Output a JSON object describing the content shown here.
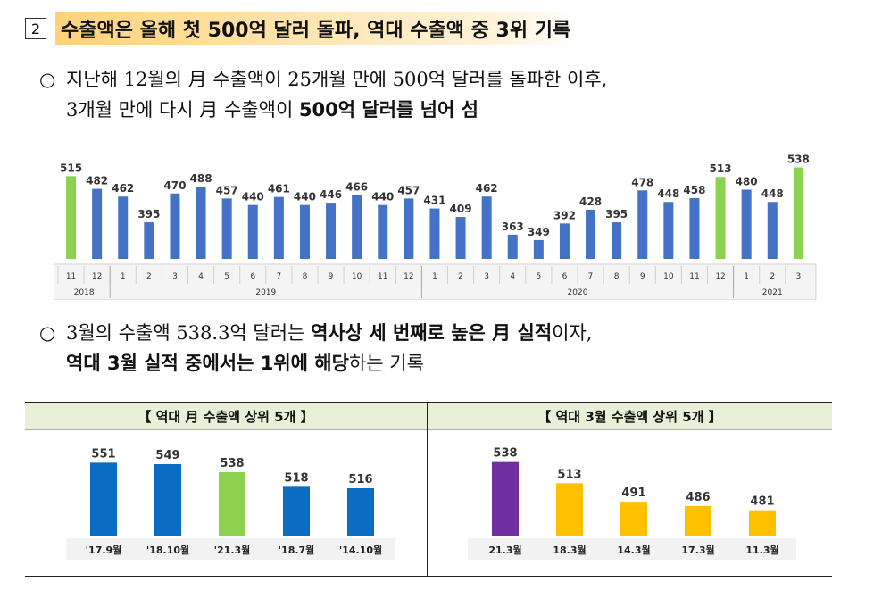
{
  "heading": {
    "number": "2",
    "title": "수출액은 올해 첫 500억 달러 돌파, 역대 수출액 중 3위 기록"
  },
  "para1": {
    "bullet": "○",
    "line1": "지난해 12월의 月 수출액이 25개월 만에 500억 달러를 돌파한 이후,",
    "line2_plain": "3개월 만에 다시 月 수출액이 ",
    "line2_bold": "500억 달러를 넘어 섬"
  },
  "para2": {
    "bullet": "○",
    "line1_plain_a": "3월의 수출액 538.3억 달러는 ",
    "line1_bold": "역사상 세 번째로 높은 月 실적",
    "line1_plain_b": "이자,",
    "line2_bold": "역대 3월 실적 중에서는 1위에 해당",
    "line2_plain": "하는 기록"
  },
  "colors": {
    "blue": "#4472c4",
    "green": "#8dd14f",
    "dark_blue": "#0a6cc2",
    "purple": "#7030a0",
    "yellow": "#ffc000"
  },
  "chart_data": [
    {
      "type": "bar",
      "months": [
        "11",
        "12",
        "1",
        "2",
        "3",
        "4",
        "5",
        "6",
        "7",
        "8",
        "9",
        "10",
        "11",
        "12",
        "1",
        "2",
        "3",
        "4",
        "5",
        "6",
        "7",
        "8",
        "9",
        "10",
        "11",
        "12",
        "1",
        "2",
        "3"
      ],
      "years": [
        {
          "label": "2018",
          "span": 2
        },
        {
          "label": "2019",
          "span": 12
        },
        {
          "label": "2020",
          "span": 12
        },
        {
          "label": "2021",
          "span": 3
        }
      ],
      "values": [
        515,
        482,
        462,
        395,
        470,
        488,
        457,
        440,
        461,
        440,
        446,
        466,
        440,
        457,
        431,
        409,
        462,
        363,
        349,
        392,
        428,
        395,
        478,
        448,
        458,
        513,
        480,
        448,
        538
      ],
      "highlight_indexes": [
        0,
        25,
        28
      ],
      "ylim": [
        300,
        560
      ]
    },
    {
      "type": "bar",
      "title": "【 역대 月 수출액 상위 5개 】",
      "categories": [
        "'17.9월",
        "'18.10월",
        "'21.3월",
        "'18.7월",
        "'14.10월"
      ],
      "values": [
        551,
        549,
        538,
        518,
        516
      ],
      "highlight_index": 2,
      "ylim": [
        450,
        560
      ]
    },
    {
      "type": "bar",
      "title": "【 역대 3월 수출액 상위 5개 】",
      "categories": [
        "21.3월",
        "18.3월",
        "14.3월",
        "17.3월",
        "11.3월"
      ],
      "values": [
        538,
        513,
        491,
        486,
        481
      ],
      "highlight_index": 0,
      "ylim": [
        450,
        545
      ]
    }
  ]
}
